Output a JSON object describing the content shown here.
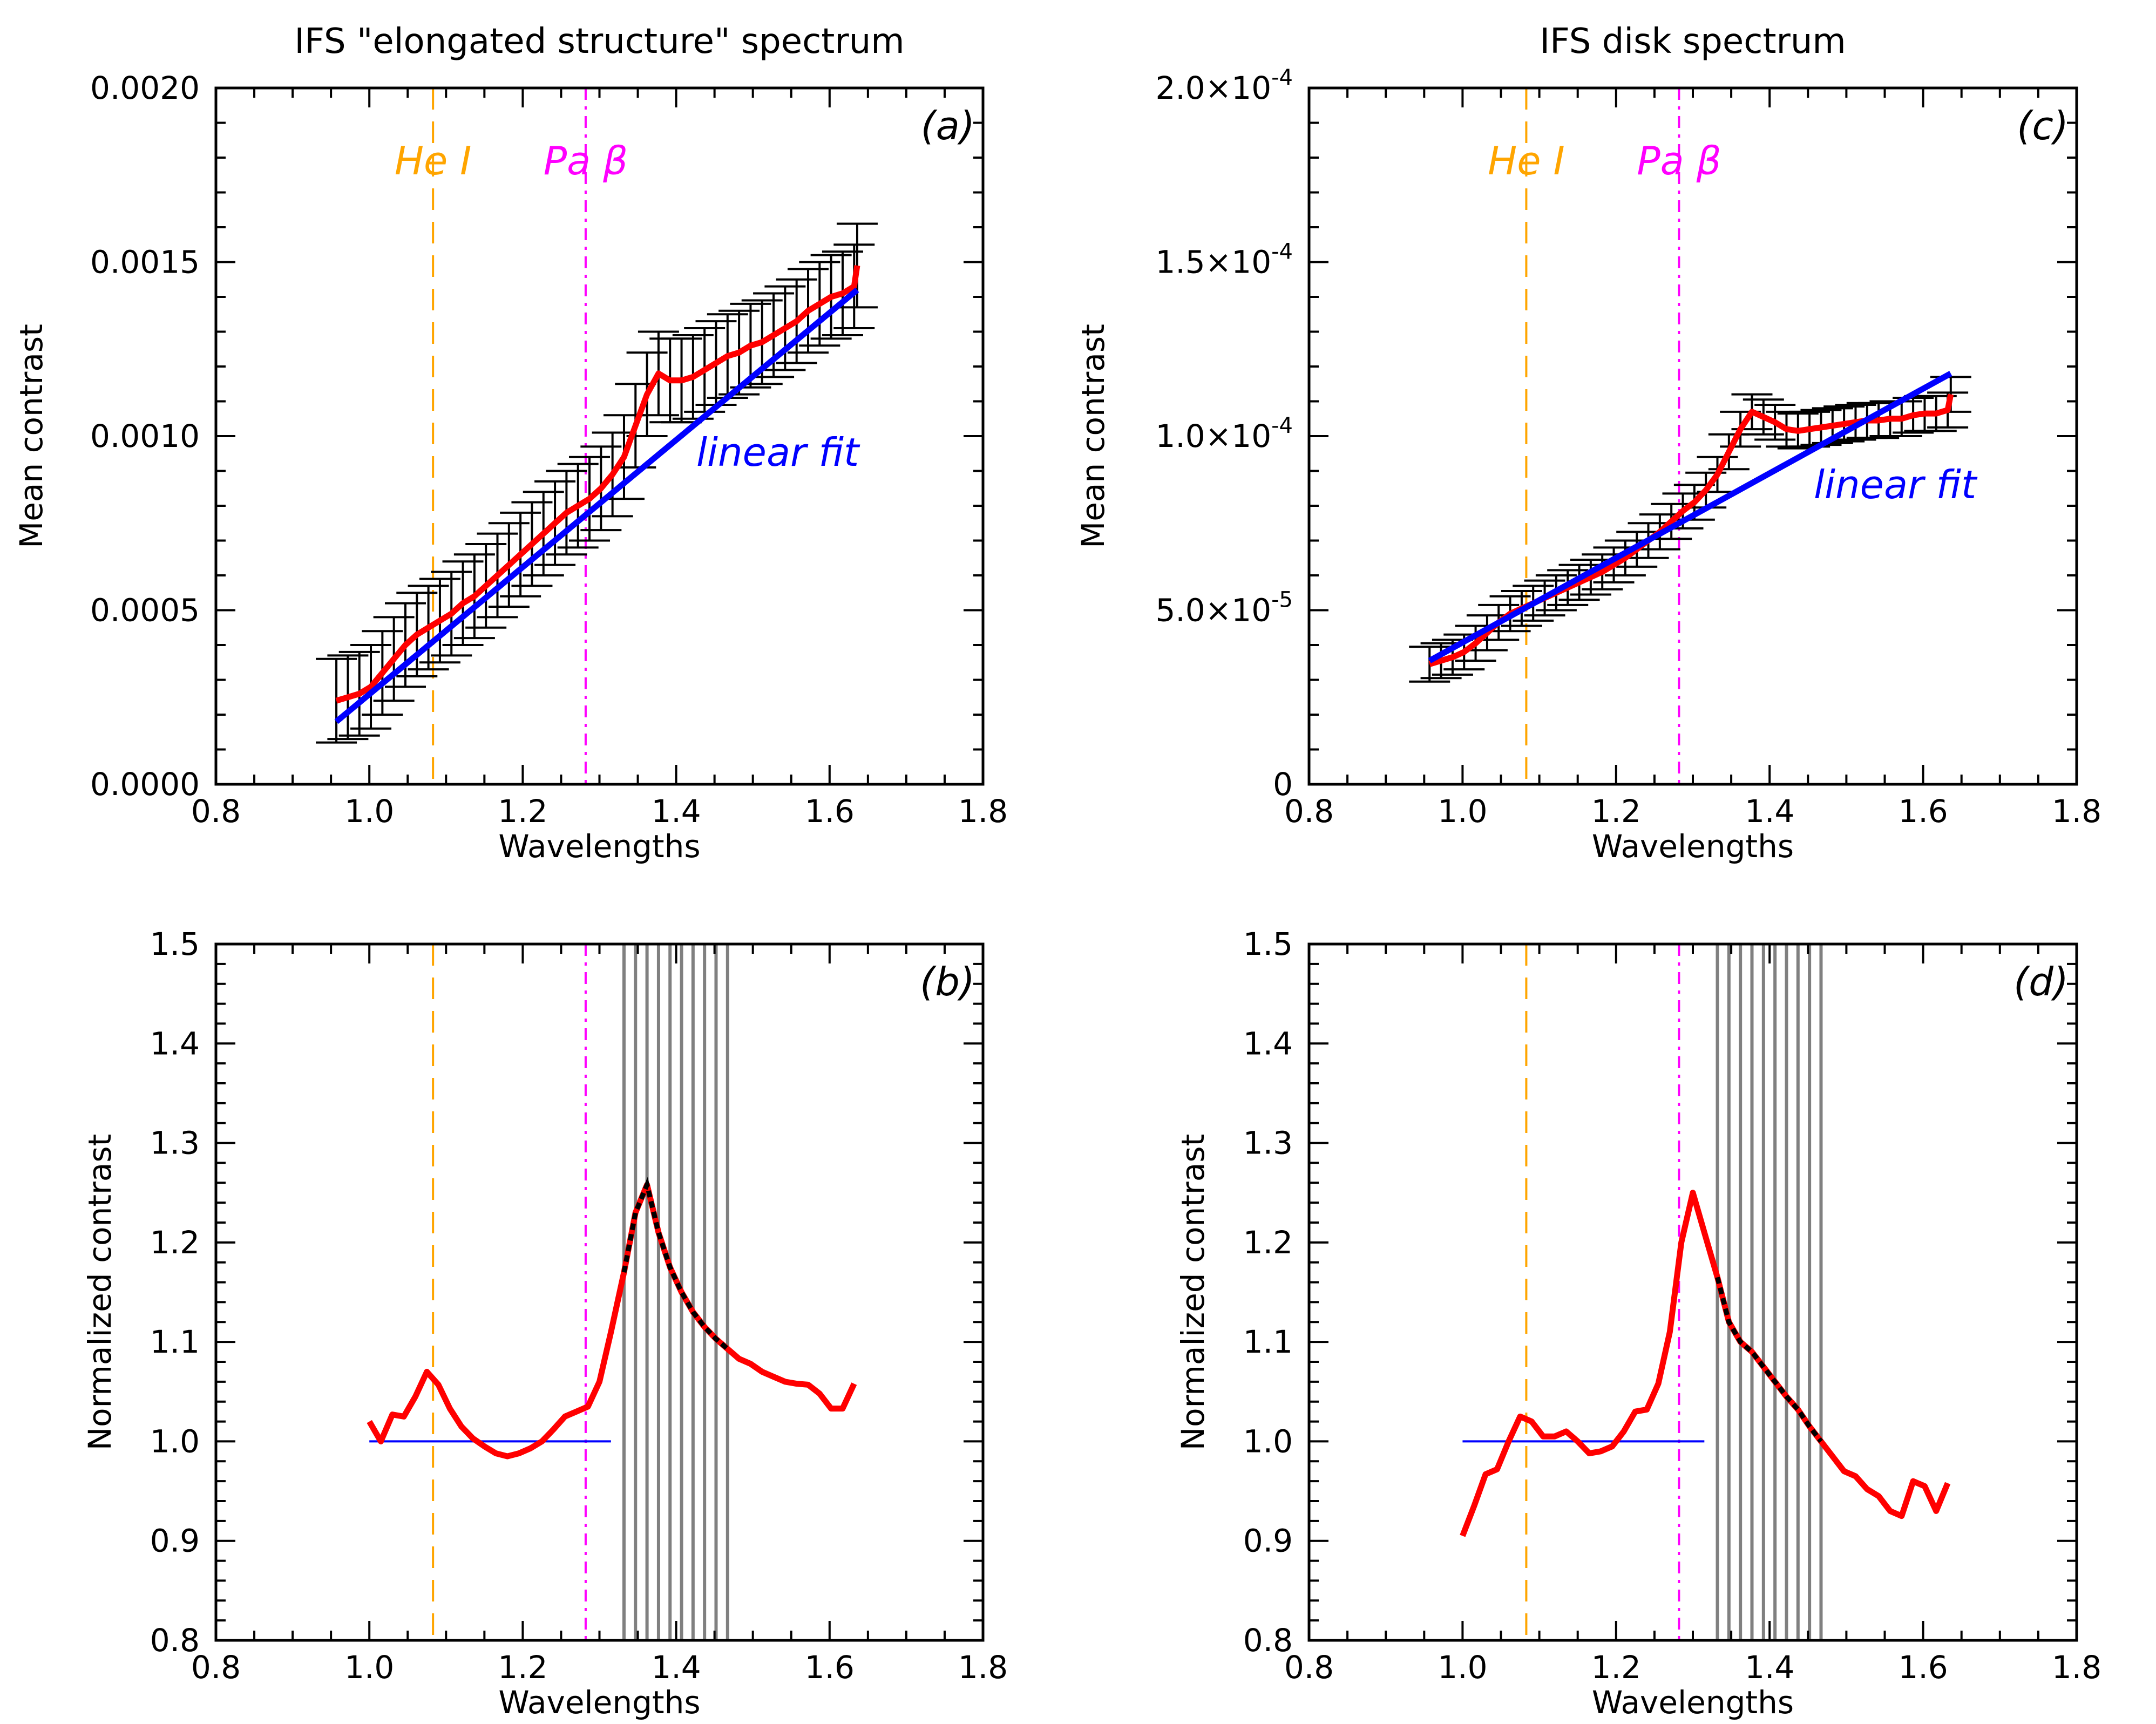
{
  "figure": {
    "background": "#ffffff"
  },
  "colors": {
    "axis": "#000000",
    "data_line": "#ff0000",
    "fit_line": "#0000ff",
    "he_line": "#ffa500",
    "pa_line": "#ff00ff",
    "error_bar": "#000000",
    "band_line": "#808080"
  },
  "chart_data": [
    {
      "panel": "a",
      "type": "line",
      "title": "IFS \"elongated structure\" spectrum",
      "xlabel": "Wavelengths",
      "ylabel": "Mean contrast",
      "xlim": [
        0.8,
        1.8
      ],
      "ylim": [
        0.0,
        0.002
      ],
      "xticks": [
        0.8,
        1.0,
        1.2,
        1.4,
        1.6,
        1.8
      ],
      "xtick_labels": [
        "0.8",
        "1.0",
        "1.2",
        "1.4",
        "1.6",
        "1.8"
      ],
      "yticks": [
        0.0,
        0.0005,
        0.001,
        0.0015,
        0.002
      ],
      "ytick_labels": [
        "0.0000",
        "0.0005",
        "0.0010",
        "0.0015",
        "0.0020"
      ],
      "panel_label": "(a)",
      "markers": [
        {
          "x": 1.083,
          "label": "He I",
          "style": "dashed",
          "color": "#ffa500"
        },
        {
          "x": 1.282,
          "label": "Pa β",
          "style": "dashdot",
          "color": "#ff00ff"
        }
      ],
      "fit_label": "linear fit",
      "fit": {
        "x": [
          0.957,
          1.636
        ],
        "y": [
          0.00018,
          0.00142
        ]
      },
      "series": [
        {
          "x": [
            0.957,
            0.972,
            0.987,
            1.002,
            1.017,
            1.032,
            1.047,
            1.062,
            1.077,
            1.092,
            1.107,
            1.122,
            1.137,
            1.152,
            1.167,
            1.182,
            1.197,
            1.212,
            1.227,
            1.242,
            1.257,
            1.272,
            1.287,
            1.302,
            1.317,
            1.332,
            1.347,
            1.362,
            1.377,
            1.392,
            1.407,
            1.422,
            1.437,
            1.452,
            1.467,
            1.482,
            1.497,
            1.512,
            1.527,
            1.542,
            1.557,
            1.572,
            1.587,
            1.602,
            1.617,
            1.632,
            1.636
          ],
          "y": [
            0.00024,
            0.00025,
            0.00026,
            0.00028,
            0.00032,
            0.00036,
            0.0004,
            0.00043,
            0.00045,
            0.00047,
            0.00049,
            0.00052,
            0.00054,
            0.00057,
            0.0006,
            0.00063,
            0.00066,
            0.00069,
            0.00072,
            0.00075,
            0.00078,
            0.0008,
            0.00082,
            0.00085,
            0.00089,
            0.00094,
            0.00103,
            0.00112,
            0.00118,
            0.00116,
            0.00116,
            0.00117,
            0.00119,
            0.00121,
            0.00123,
            0.00124,
            0.00126,
            0.00127,
            0.00129,
            0.00131,
            0.00133,
            0.00136,
            0.00138,
            0.0014,
            0.00141,
            0.00143,
            0.00149
          ],
          "err": 0.00012
        }
      ]
    },
    {
      "panel": "c",
      "type": "line",
      "title": "IFS disk spectrum",
      "xlabel": "Wavelengths",
      "ylabel": "Mean contrast",
      "xlim": [
        0.8,
        1.8
      ],
      "ylim": [
        0.0,
        0.0002
      ],
      "xticks": [
        0.8,
        1.0,
        1.2,
        1.4,
        1.6,
        1.8
      ],
      "xtick_labels": [
        "0.8",
        "1.0",
        "1.2",
        "1.4",
        "1.6",
        "1.8"
      ],
      "yticks": [
        0.0,
        5e-05,
        0.0001,
        0.00015,
        0.0002
      ],
      "ytick_labels": [
        {
          "base": "0",
          "exp": ""
        },
        {
          "base": "5.0×10",
          "exp": "-5"
        },
        {
          "base": "1.0×10",
          "exp": "-4"
        },
        {
          "base": "1.5×10",
          "exp": "-4"
        },
        {
          "base": "2.0×10",
          "exp": "-4"
        }
      ],
      "panel_label": "(c)",
      "markers": [
        {
          "x": 1.083,
          "label": "He I",
          "style": "dashed",
          "color": "#ffa500"
        },
        {
          "x": 1.282,
          "label": "Pa β",
          "style": "dashdot",
          "color": "#ff00ff"
        }
      ],
      "fit_label": "linear fit",
      "fit": {
        "x": [
          0.957,
          1.636
        ],
        "y": [
          3.55e-05,
          0.000118
        ]
      },
      "series": [
        {
          "x": [
            0.957,
            0.972,
            0.987,
            1.002,
            1.017,
            1.032,
            1.047,
            1.062,
            1.077,
            1.092,
            1.107,
            1.122,
            1.137,
            1.152,
            1.167,
            1.182,
            1.197,
            1.212,
            1.227,
            1.242,
            1.257,
            1.272,
            1.287,
            1.302,
            1.317,
            1.332,
            1.347,
            1.362,
            1.377,
            1.392,
            1.407,
            1.422,
            1.437,
            1.452,
            1.467,
            1.482,
            1.497,
            1.512,
            1.527,
            1.542,
            1.557,
            1.572,
            1.587,
            1.602,
            1.617,
            1.632,
            1.636
          ],
          "y": [
            3.45e-05,
            3.55e-05,
            3.65e-05,
            3.8e-05,
            4.05e-05,
            4.35e-05,
            4.65e-05,
            4.9e-05,
            5.05e-05,
            5.2e-05,
            5.35e-05,
            5.5e-05,
            5.65e-05,
            5.8e-05,
            5.95e-05,
            6.1e-05,
            6.3e-05,
            6.5e-05,
            6.75e-05,
            7e-05,
            7.25e-05,
            7.55e-05,
            7.85e-05,
            8.1e-05,
            8.45e-05,
            8.9e-05,
            9.55e-05,
            0.000102,
            0.000107,
            0.0001055,
            0.000104,
            0.000102,
            0.0001015,
            0.000102,
            0.0001025,
            0.000103,
            0.0001035,
            0.000104,
            0.0001045,
            0.0001045,
            0.000105,
            0.000105,
            0.000106,
            0.0001065,
            0.0001065,
            0.0001075,
            0.000112
          ],
          "err": 5e-06
        }
      ]
    },
    {
      "panel": "b",
      "type": "line",
      "title": "",
      "xlabel": "Wavelengths",
      "ylabel": "Normalized contrast",
      "xlim": [
        0.8,
        1.8
      ],
      "ylim": [
        0.8,
        1.5
      ],
      "xticks": [
        0.8,
        1.0,
        1.2,
        1.4,
        1.6,
        1.8
      ],
      "xtick_labels": [
        "0.8",
        "1.0",
        "1.2",
        "1.4",
        "1.6",
        "1.8"
      ],
      "yticks": [
        0.8,
        0.9,
        1.0,
        1.1,
        1.2,
        1.3,
        1.4,
        1.5
      ],
      "ytick_labels": [
        "0.8",
        "0.9",
        "1.0",
        "1.1",
        "1.2",
        "1.3",
        "1.4",
        "1.5"
      ],
      "panel_label": "(b)",
      "markers": [
        {
          "x": 1.083,
          "label": "",
          "style": "dashed",
          "color": "#ffa500"
        },
        {
          "x": 1.282,
          "label": "",
          "style": "dashdot",
          "color": "#ff00ff"
        }
      ],
      "reference": {
        "x": [
          1.0,
          1.315
        ],
        "y": 1.0
      },
      "band": {
        "x": [
          1.332,
          1.347,
          1.362,
          1.377,
          1.392,
          1.407,
          1.422,
          1.437,
          1.452,
          1.467
        ]
      },
      "series": [
        {
          "x": [
            1.0,
            1.015,
            1.03,
            1.045,
            1.06,
            1.075,
            1.09,
            1.105,
            1.12,
            1.135,
            1.15,
            1.165,
            1.18,
            1.195,
            1.21,
            1.225,
            1.24,
            1.255,
            1.27,
            1.285,
            1.3,
            1.315,
            1.332,
            1.347,
            1.362,
            1.377,
            1.392,
            1.407,
            1.422,
            1.437,
            1.452,
            1.467,
            1.482,
            1.497,
            1.512,
            1.527,
            1.542,
            1.557,
            1.572,
            1.587,
            1.602,
            1.617,
            1.632
          ],
          "y": [
            1.02,
            1.0,
            1.027,
            1.025,
            1.045,
            1.07,
            1.057,
            1.033,
            1.015,
            1.003,
            0.995,
            0.988,
            0.985,
            0.988,
            0.993,
            1.0,
            1.012,
            1.025,
            1.03,
            1.035,
            1.06,
            1.11,
            1.17,
            1.23,
            1.258,
            1.21,
            1.175,
            1.15,
            1.13,
            1.115,
            1.103,
            1.093,
            1.083,
            1.078,
            1.07,
            1.065,
            1.06,
            1.058,
            1.057,
            1.048,
            1.033,
            1.033,
            1.058
          ]
        }
      ]
    },
    {
      "panel": "d",
      "type": "line",
      "title": "",
      "xlabel": "Wavelengths",
      "ylabel": "Normalized contrast",
      "xlim": [
        0.8,
        1.8
      ],
      "ylim": [
        0.8,
        1.5
      ],
      "xticks": [
        0.8,
        1.0,
        1.2,
        1.4,
        1.6,
        1.8
      ],
      "xtick_labels": [
        "0.8",
        "1.0",
        "1.2",
        "1.4",
        "1.6",
        "1.8"
      ],
      "yticks": [
        0.8,
        0.9,
        1.0,
        1.1,
        1.2,
        1.3,
        1.4,
        1.5
      ],
      "ytick_labels": [
        "0.8",
        "0.9",
        "1.0",
        "1.1",
        "1.2",
        "1.3",
        "1.4",
        "1.5"
      ],
      "panel_label": "(d)",
      "markers": [
        {
          "x": 1.083,
          "label": "",
          "style": "dashed",
          "color": "#ffa500"
        },
        {
          "x": 1.282,
          "label": "",
          "style": "dashdot",
          "color": "#ff00ff"
        }
      ],
      "reference": {
        "x": [
          1.0,
          1.315
        ],
        "y": 1.0
      },
      "band": {
        "x": [
          1.332,
          1.347,
          1.362,
          1.377,
          1.392,
          1.407,
          1.422,
          1.437,
          1.452,
          1.467
        ]
      },
      "series": [
        {
          "x": [
            1.0,
            1.015,
            1.03,
            1.045,
            1.06,
            1.075,
            1.09,
            1.105,
            1.12,
            1.135,
            1.15,
            1.165,
            1.18,
            1.195,
            1.21,
            1.225,
            1.24,
            1.255,
            1.27,
            1.285,
            1.3,
            1.315,
            1.332,
            1.347,
            1.362,
            1.377,
            1.392,
            1.407,
            1.422,
            1.437,
            1.452,
            1.467,
            1.482,
            1.497,
            1.512,
            1.527,
            1.542,
            1.557,
            1.572,
            1.587,
            1.602,
            1.617,
            1.632
          ],
          "y": [
            0.905,
            0.935,
            0.967,
            0.972,
            1.0,
            1.025,
            1.02,
            1.005,
            1.005,
            1.01,
            1.0,
            0.988,
            0.99,
            0.995,
            1.01,
            1.03,
            1.032,
            1.058,
            1.11,
            1.2,
            1.25,
            1.21,
            1.165,
            1.12,
            1.1,
            1.09,
            1.075,
            1.06,
            1.045,
            1.032,
            1.015,
            1.0,
            0.985,
            0.97,
            0.965,
            0.952,
            0.945,
            0.93,
            0.925,
            0.96,
            0.955,
            0.93,
            0.958
          ]
        }
      ]
    }
  ]
}
